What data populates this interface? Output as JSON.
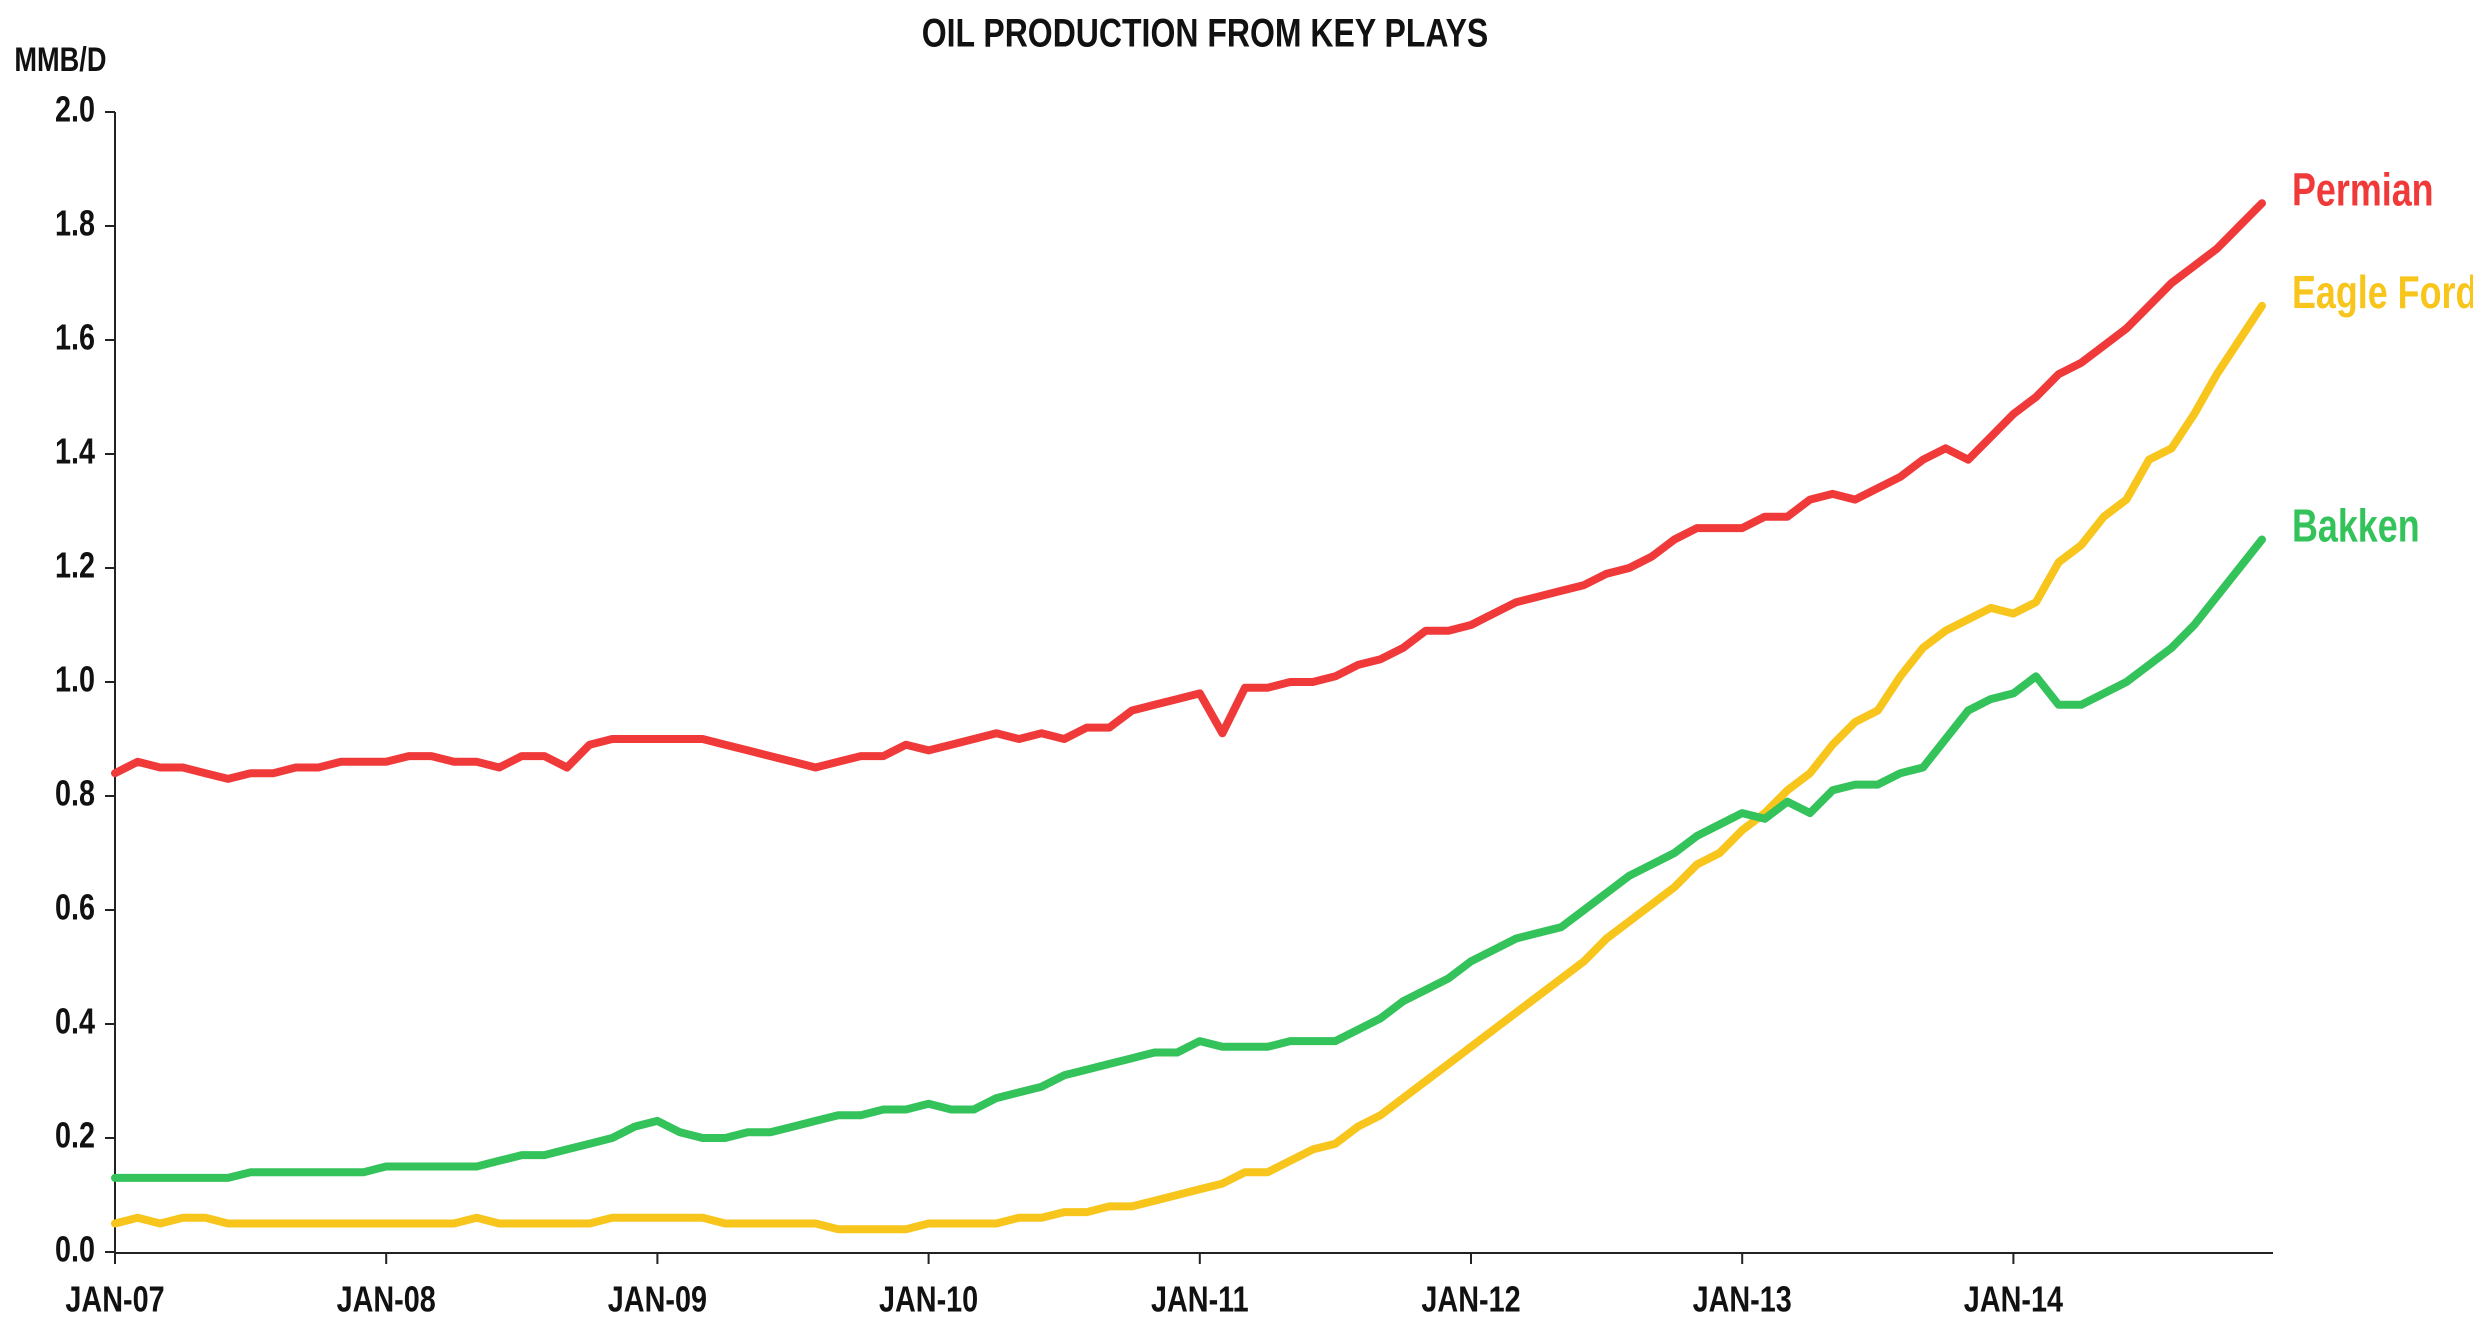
{
  "chart_data": {
    "type": "line",
    "title": "OIL PRODUCTION FROM KEY PLAYS",
    "y_label": "MMB/D",
    "categories": [
      "JAN-07",
      null,
      null,
      null,
      null,
      null,
      null,
      null,
      null,
      null,
      null,
      null,
      "JAN-08",
      null,
      null,
      null,
      null,
      null,
      null,
      null,
      null,
      null,
      null,
      null,
      "JAN-09",
      null,
      null,
      null,
      null,
      null,
      null,
      null,
      null,
      null,
      null,
      null,
      "JAN-10",
      null,
      null,
      null,
      null,
      null,
      null,
      null,
      null,
      null,
      null,
      null,
      "JAN-11",
      null,
      null,
      null,
      null,
      null,
      null,
      null,
      null,
      null,
      null,
      null,
      "JAN-12",
      null,
      null,
      null,
      null,
      null,
      null,
      null,
      null,
      null,
      null,
      null,
      "JAN-13",
      null,
      null,
      null,
      null,
      null,
      null,
      null,
      null,
      null,
      null,
      null,
      "JAN-14",
      null,
      null,
      null,
      null,
      null,
      null,
      null,
      null,
      null,
      null,
      null
    ],
    "series": [
      {
        "name": "Permian",
        "color": "#f03a3a",
        "values": [
          0.84,
          0.86,
          0.85,
          0.85,
          0.84,
          0.83,
          0.84,
          0.84,
          0.85,
          0.85,
          0.86,
          0.86,
          0.86,
          0.87,
          0.87,
          0.86,
          0.86,
          0.85,
          0.87,
          0.87,
          0.85,
          0.89,
          0.9,
          0.9,
          0.9,
          0.9,
          0.9,
          0.89,
          0.88,
          0.87,
          0.86,
          0.85,
          0.86,
          0.87,
          0.87,
          0.89,
          0.88,
          0.89,
          0.9,
          0.91,
          0.9,
          0.91,
          0.9,
          0.92,
          0.92,
          0.95,
          0.96,
          0.97,
          0.98,
          0.91,
          0.99,
          0.99,
          1.0,
          1.0,
          1.01,
          1.03,
          1.04,
          1.06,
          1.09,
          1.09,
          1.1,
          1.12,
          1.14,
          1.15,
          1.16,
          1.17,
          1.19,
          1.2,
          1.22,
          1.25,
          1.27,
          1.27,
          1.27,
          1.29,
          1.29,
          1.32,
          1.33,
          1.32,
          1.34,
          1.36,
          1.39,
          1.41,
          1.39,
          1.43,
          1.47,
          1.5,
          1.54,
          1.56,
          1.59,
          1.62,
          1.66,
          1.7,
          1.73,
          1.76,
          1.8,
          1.84
        ]
      },
      {
        "name": "Eagle Ford",
        "color": "#f7c51b",
        "values": [
          0.05,
          0.06,
          0.05,
          0.06,
          0.06,
          0.05,
          0.05,
          0.05,
          0.05,
          0.05,
          0.05,
          0.05,
          0.05,
          0.05,
          0.05,
          0.05,
          0.06,
          0.05,
          0.05,
          0.05,
          0.05,
          0.05,
          0.06,
          0.06,
          0.06,
          0.06,
          0.06,
          0.05,
          0.05,
          0.05,
          0.05,
          0.05,
          0.04,
          0.04,
          0.04,
          0.04,
          0.05,
          0.05,
          0.05,
          0.05,
          0.06,
          0.06,
          0.07,
          0.07,
          0.08,
          0.08,
          0.09,
          0.1,
          0.11,
          0.12,
          0.14,
          0.14,
          0.16,
          0.18,
          0.19,
          0.22,
          0.24,
          0.27,
          0.3,
          0.33,
          0.36,
          0.39,
          0.42,
          0.45,
          0.48,
          0.51,
          0.55,
          0.58,
          0.61,
          0.64,
          0.68,
          0.7,
          0.74,
          0.77,
          0.81,
          0.84,
          0.89,
          0.93,
          0.95,
          1.01,
          1.06,
          1.09,
          1.11,
          1.13,
          1.12,
          1.14,
          1.21,
          1.24,
          1.29,
          1.32,
          1.39,
          1.41,
          1.47,
          1.54,
          1.6,
          1.66
        ]
      },
      {
        "name": "Bakken",
        "color": "#34c25a",
        "values": [
          0.13,
          0.13,
          0.13,
          0.13,
          0.13,
          0.13,
          0.14,
          0.14,
          0.14,
          0.14,
          0.14,
          0.14,
          0.15,
          0.15,
          0.15,
          0.15,
          0.15,
          0.16,
          0.17,
          0.17,
          0.18,
          0.19,
          0.2,
          0.22,
          0.23,
          0.21,
          0.2,
          0.2,
          0.21,
          0.21,
          0.22,
          0.23,
          0.24,
          0.24,
          0.25,
          0.25,
          0.26,
          0.25,
          0.25,
          0.27,
          0.28,
          0.29,
          0.31,
          0.32,
          0.33,
          0.34,
          0.35,
          0.35,
          0.37,
          0.36,
          0.36,
          0.36,
          0.37,
          0.37,
          0.37,
          0.39,
          0.41,
          0.44,
          0.46,
          0.48,
          0.51,
          0.53,
          0.55,
          0.56,
          0.57,
          0.6,
          0.63,
          0.66,
          0.68,
          0.7,
          0.73,
          0.75,
          0.77,
          0.76,
          0.79,
          0.77,
          0.81,
          0.82,
          0.82,
          0.84,
          0.85,
          0.9,
          0.95,
          0.97,
          0.98,
          1.01,
          0.96,
          0.96,
          0.98,
          1.0,
          1.03,
          1.06,
          1.1,
          1.15,
          1.2,
          1.25
        ]
      }
    ],
    "ylim": [
      0,
      2
    ],
    "yticks": [
      {
        "value": 0,
        "label": "0.0"
      },
      0.2,
      0.4,
      0.6,
      0.8,
      {
        "value": 1,
        "label": "1.0"
      },
      1.2,
      1.4,
      1.6,
      1.8,
      {
        "value": 2,
        "label": "2.0"
      }
    ],
    "grid": false
  }
}
